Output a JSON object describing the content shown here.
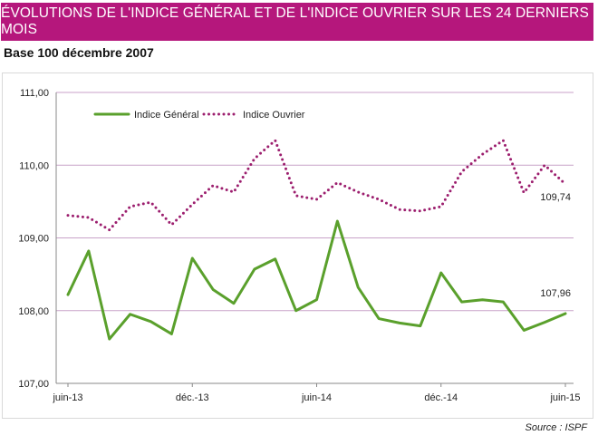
{
  "header": {
    "title": "ÉVOLUTIONS DE L'INDICE GÉNÉRAL ET DE L'INDICE OUVRIER SUR LES 24 DERNIERS MOIS",
    "subtitle": "Base 100 décembre 2007",
    "source": "Source : ISPF"
  },
  "colors": {
    "banner": "#b5177c",
    "general": "#5aa02c",
    "ouvrier": "#9c1e6e",
    "grid": "#c8a2c8"
  },
  "chart_data": {
    "type": "line",
    "title": "ÉVOLUTIONS DE L'INDICE GÉNÉRAL ET DE L'INDICE OUVRIER SUR LES 24 DERNIERS MOIS",
    "subtitle": "Base 100 décembre 2007",
    "ylim": [
      107,
      111
    ],
    "yticks": [
      "107,00",
      "108,00",
      "109,00",
      "110,00",
      "111,00"
    ],
    "xtick_labels": [
      "juin-13",
      "déc.-13",
      "juin-14",
      "déc.-14",
      "juin-15"
    ],
    "grid": true,
    "legend": "top-left",
    "x": [
      "juin-13",
      "juil.-13",
      "août-13",
      "sept.-13",
      "oct.-13",
      "nov.-13",
      "déc.-13",
      "janv.-14",
      "févr.-14",
      "mars-14",
      "avr.-14",
      "mai-14",
      "juin-14",
      "juil.-14",
      "août-14",
      "sept.-14",
      "oct.-14",
      "nov.-14",
      "déc.-14",
      "janv.-15",
      "févr.-15",
      "mars-15",
      "avr.-15",
      "mai-15",
      "juin-15"
    ],
    "series": [
      {
        "name": "Indice Général",
        "style": "solid",
        "values": [
          108.22,
          108.82,
          107.61,
          107.95,
          107.85,
          107.68,
          108.72,
          108.29,
          108.1,
          108.57,
          108.71,
          108.0,
          108.15,
          109.23,
          108.32,
          107.89,
          107.83,
          107.79,
          108.52,
          108.12,
          108.15,
          108.12,
          107.73,
          107.84,
          107.96
        ],
        "end_label": "107,96"
      },
      {
        "name": "Indice Ouvrier",
        "style": "dotted",
        "values": [
          109.31,
          109.28,
          109.11,
          109.43,
          109.49,
          109.18,
          109.46,
          109.72,
          109.63,
          110.09,
          110.34,
          109.58,
          109.53,
          109.76,
          109.63,
          109.53,
          109.39,
          109.37,
          109.43,
          109.91,
          110.15,
          110.34,
          109.62,
          110.0,
          109.74
        ],
        "end_label": "109,74"
      }
    ]
  }
}
